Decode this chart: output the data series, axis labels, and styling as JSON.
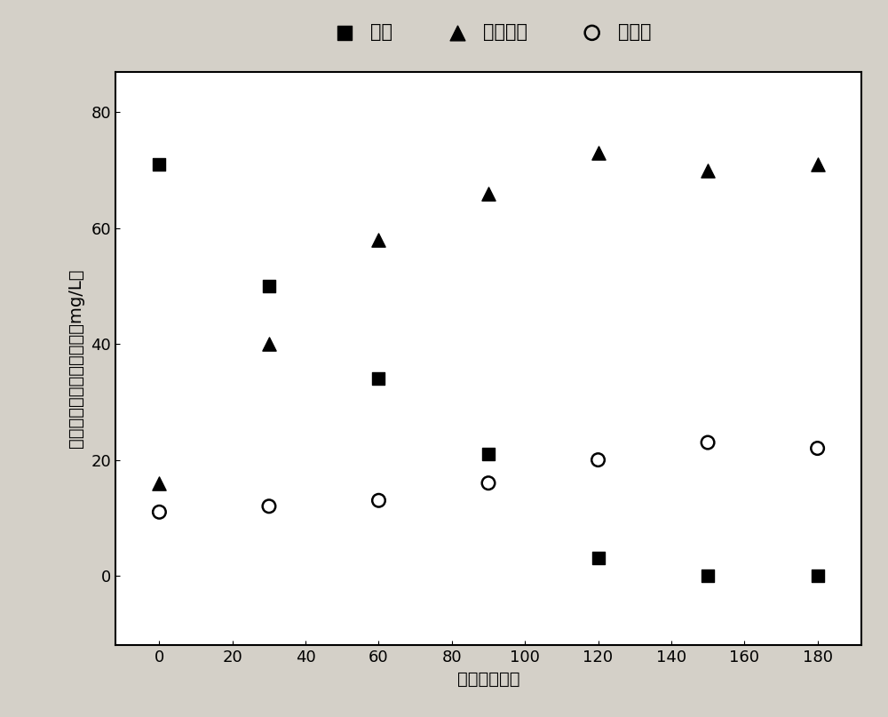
{
  "ammonia_x": [
    0,
    30,
    60,
    90,
    120,
    150,
    180
  ],
  "ammonia_y": [
    71,
    50,
    34,
    21,
    3,
    0,
    0
  ],
  "nitrite_x": [
    0,
    30,
    60,
    90,
    120,
    150,
    180
  ],
  "nitrite_y": [
    16,
    40,
    58,
    66,
    73,
    70,
    71
  ],
  "nitrate_x": [
    0,
    30,
    60,
    90,
    120,
    150,
    180
  ],
  "nitrate_y": [
    11,
    12,
    13,
    16,
    20,
    23,
    22
  ],
  "xlabel": "时间（分钟）",
  "ylabel": "氨氮、亚瞄态氮、瞄态氮（mg/L）",
  "label_ammonia": "氨氮",
  "label_nitrite": "亚瞄态氮",
  "label_nitrate": "瞄态氮",
  "xlim": [
    -12,
    192
  ],
  "ylim": [
    -12,
    87
  ],
  "xticks": [
    0,
    20,
    40,
    60,
    80,
    100,
    120,
    140,
    160,
    180
  ],
  "yticks": [
    0,
    20,
    40,
    60,
    80
  ],
  "background_color": "#d4d0c8",
  "plot_bg_color": "#ffffff",
  "marker_color": "#000000",
  "marker_size_sq": 100,
  "marker_size_tri": 120,
  "marker_size_circ": 110,
  "legend_fontsize": 15,
  "axis_fontsize": 14,
  "tick_fontsize": 13
}
